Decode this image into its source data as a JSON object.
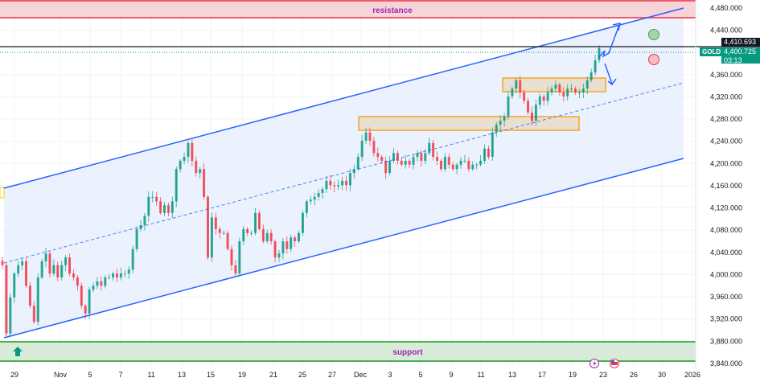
{
  "chart_data": {
    "type": "candlestick",
    "symbol": "GOLD",
    "y_ticks": [
      4480,
      4440,
      4360,
      4320,
      4280,
      4240,
      4200,
      4160,
      4120,
      4080,
      4040,
      4000,
      3960,
      3920,
      3880,
      3840
    ],
    "y_tick_labels": [
      "4,480.000",
      "4,440.000",
      "4,360.000",
      "4,320.000",
      "4,280.000",
      "4,240.000",
      "4,200.000",
      "4,160.000",
      "4,120.000",
      "4,080.000",
      "4,040.000",
      "4,000.000",
      "3,960.000",
      "3,920.000",
      "3,880.000",
      "3,840.000"
    ],
    "ylim": [
      3832,
      4494
    ],
    "x_tick_labels": [
      "29",
      "Nov",
      "5",
      "7",
      "11",
      "13",
      "15",
      "19",
      "21",
      "25",
      "27",
      "Dec",
      "3",
      "5",
      "9",
      "11",
      "13",
      "17",
      "19",
      "23",
      "26",
      "30",
      "2026"
    ],
    "closes": [
      4017,
      3894,
      3959,
      4002,
      4017,
      4024,
      3980,
      3944,
      3915,
      3995,
      4024,
      4038,
      4002,
      4017,
      3995,
      4017,
      4031,
      4002,
      3995,
      3980,
      3944,
      3930,
      3973,
      3980,
      3988,
      3980,
      3995,
      3995,
      4002,
      3995,
      4002,
      4002,
      4009,
      4046,
      4082,
      4089,
      4106,
      4140,
      4140,
      4132,
      4111,
      4125,
      4111,
      4132,
      4190,
      4205,
      4212,
      4237,
      4205,
      4183,
      4190,
      4140,
      4031,
      4103,
      4082,
      4075,
      4075,
      4046,
      4017,
      4002,
      4060,
      4082,
      4075,
      4075,
      4111,
      4082,
      4060,
      4075,
      4060,
      4031,
      4038,
      4060,
      4046,
      4067,
      4060,
      4075,
      4111,
      4132,
      4135,
      4140,
      4147,
      4154,
      4169,
      4161,
      4159,
      4161,
      4169,
      4161,
      4183,
      4190,
      4212,
      4241,
      4256,
      4241,
      4219,
      4212,
      4205,
      4183,
      4205,
      4219,
      4205,
      4198,
      4205,
      4198,
      4212,
      4219,
      4205,
      4219,
      4237,
      4212,
      4205,
      4190,
      4212,
      4198,
      4190,
      4198,
      4205,
      4205,
      4190,
      4198,
      4198,
      4205,
      4227,
      4212,
      4256,
      4270,
      4277,
      4285,
      4321,
      4335,
      4350,
      4328,
      4313,
      4292,
      4277,
      4306,
      4321,
      4313,
      4328,
      4335,
      4342,
      4328,
      4321,
      4335,
      4335,
      4328,
      4328,
      4335,
      4350,
      4364,
      4386,
      4408
    ],
    "resistance": {
      "label": "resistance",
      "from": 4455,
      "to": 4494
    },
    "support": {
      "label": "support",
      "from": 3842,
      "to": 3878
    },
    "demand_boxes": [
      {
        "from": 4272,
        "to": 4284
      },
      {
        "from": 4330,
        "to": 4354
      }
    ],
    "horizontal_line": {
      "value": 4410.693,
      "label": "4,410.693"
    },
    "last_price": {
      "value": 4400.725,
      "label": "4,400.725",
      "countdown": "03:13"
    },
    "colors": {
      "up": "#089981",
      "down": "#f23645",
      "channel": "#2962ff",
      "channel_fill": "#e8f0fd",
      "resistance": "#f7d4d8",
      "support": "#d8ead8",
      "box": "#f5a623"
    }
  }
}
